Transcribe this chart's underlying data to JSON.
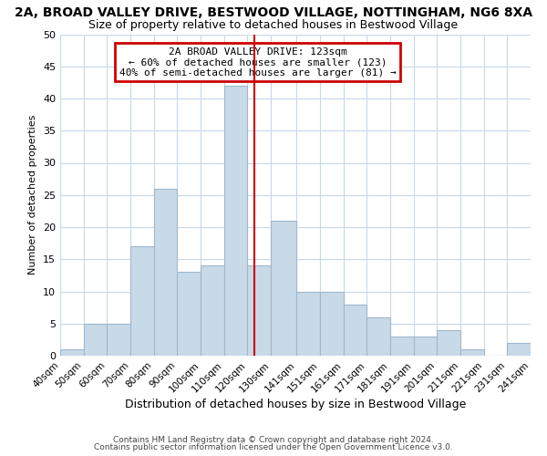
{
  "title": "2A, BROAD VALLEY DRIVE, BESTWOOD VILLAGE, NOTTINGHAM, NG6 8XA",
  "subtitle": "Size of property relative to detached houses in Bestwood Village",
  "xlabel": "Distribution of detached houses by size in Bestwood Village",
  "ylabel": "Number of detached properties",
  "bar_color": "#c8d9e8",
  "bar_edgecolor": "#a0b8cc",
  "vline_x": 123,
  "vline_color": "#cc0000",
  "annotation_lines": [
    "2A BROAD VALLEY DRIVE: 123sqm",
    "← 60% of detached houses are smaller (123)",
    "40% of semi-detached houses are larger (81) →"
  ],
  "annotation_box_edgecolor": "#cc0000",
  "bins": [
    40,
    50,
    60,
    70,
    80,
    90,
    100,
    110,
    120,
    130,
    141,
    151,
    161,
    171,
    181,
    191,
    201,
    211,
    221,
    231,
    241
  ],
  "counts": [
    1,
    5,
    5,
    17,
    26,
    13,
    14,
    42,
    14,
    21,
    10,
    10,
    8,
    6,
    3,
    3,
    4,
    1,
    0,
    2
  ],
  "xtick_labels": [
    "40sqm",
    "50sqm",
    "60sqm",
    "70sqm",
    "80sqm",
    "90sqm",
    "100sqm",
    "110sqm",
    "120sqm",
    "130sqm",
    "141sqm",
    "151sqm",
    "161sqm",
    "171sqm",
    "181sqm",
    "191sqm",
    "201sqm",
    "211sqm",
    "221sqm",
    "231sqm",
    "241sqm"
  ],
  "ylim": [
    0,
    50
  ],
  "yticks": [
    0,
    5,
    10,
    15,
    20,
    25,
    30,
    35,
    40,
    45,
    50
  ],
  "footnote1": "Contains HM Land Registry data © Crown copyright and database right 2024.",
  "footnote2": "Contains public sector information licensed under the Open Government Licence v3.0.",
  "background_color": "#ffffff",
  "grid_color": "#c8d8e8",
  "title_fontsize": 10,
  "subtitle_fontsize": 9,
  "xlabel_fontsize": 9,
  "ylabel_fontsize": 8,
  "annotation_fontsize": 8,
  "xtick_fontsize": 7.5,
  "ytick_fontsize": 8,
  "footnote_fontsize": 6.5
}
